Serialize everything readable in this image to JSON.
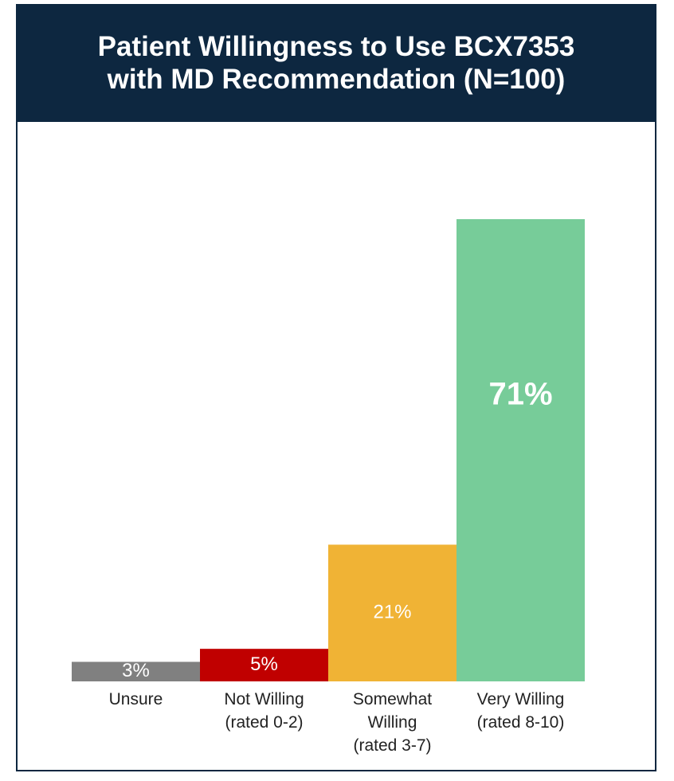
{
  "chart_data": {
    "type": "bar",
    "title": "Patient Willingness to Use BCX7353\nwith MD Recommendation (N=100)",
    "categories": [
      "Unsure",
      "Not Willing\n(rated 0-2)",
      "Somewhat\nWilling\n(rated 3-7)",
      "Very Willing\n(rated 8-10)"
    ],
    "values": [
      3,
      5,
      21,
      71
    ],
    "value_labels": [
      "3%",
      "5%",
      "21%",
      "71%"
    ],
    "colors": [
      "#808080",
      "#c00000",
      "#f0b335",
      "#77cc99"
    ]
  }
}
